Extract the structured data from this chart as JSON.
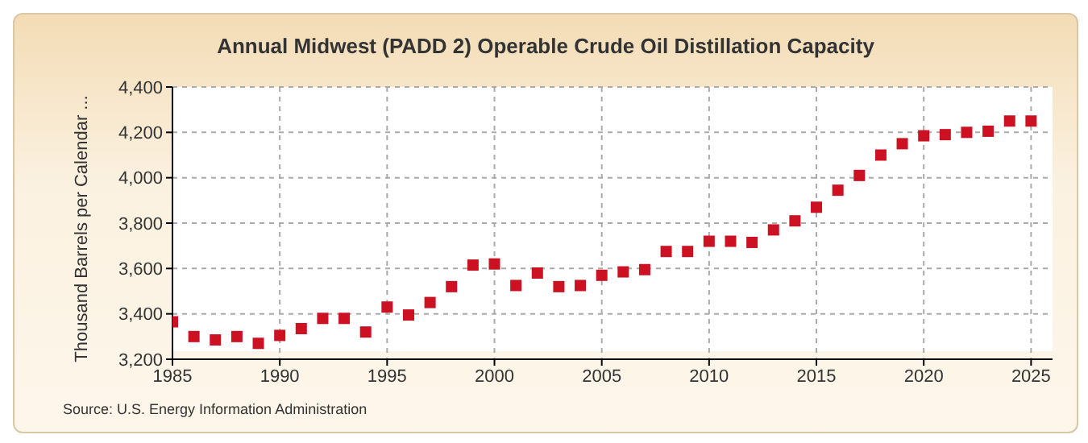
{
  "chart_data": {
    "type": "scatter",
    "title": "Annual Midwest (PADD 2) Operable Crude Oil Distillation Capacity",
    "ylabel": "Thousand Barrels per Calendar ...",
    "annotations": [
      "Source: U.S. Energy Information Administration"
    ],
    "x": [
      1985,
      1986,
      1987,
      1988,
      1989,
      1990,
      1991,
      1992,
      1993,
      1994,
      1995,
      1996,
      1997,
      1998,
      1999,
      2000,
      2001,
      2002,
      2003,
      2004,
      2005,
      2006,
      2007,
      2008,
      2009,
      2010,
      2011,
      2012,
      2013,
      2014,
      2015,
      2016,
      2017,
      2018,
      2019,
      2020,
      2021,
      2022,
      2023,
      2024,
      2025
    ],
    "series": [
      {
        "color": "#cc1122",
        "values": [
          3365,
          3300,
          3285,
          3300,
          3270,
          3305,
          3335,
          3380,
          3380,
          3320,
          3430,
          3395,
          3450,
          3520,
          3615,
          3620,
          3525,
          3580,
          3520,
          3525,
          3570,
          3585,
          3595,
          3675,
          3675,
          3720,
          3720,
          3715,
          3770,
          3810,
          3870,
          3945,
          4010,
          4100,
          4150,
          4185,
          4190,
          4200,
          4205,
          4250,
          4250
        ]
      }
    ],
    "xlim": [
      1985,
      2026
    ],
    "xticks": [
      1985,
      1990,
      1995,
      2000,
      2005,
      2010,
      2015,
      2020,
      2025
    ],
    "ylim": [
      3200,
      4400
    ],
    "yticks": [
      {
        "value": 3200,
        "label": "3,200"
      },
      {
        "value": 3400,
        "label": "3,400"
      },
      {
        "value": 3600,
        "label": "3,600"
      },
      {
        "value": 3800,
        "label": "3,800"
      },
      {
        "value": 4000,
        "label": "4,000"
      },
      {
        "value": 4200,
        "label": "4,200"
      },
      {
        "value": 4400,
        "label": "4,400"
      }
    ],
    "grid": true,
    "marker": "square",
    "legend": false
  }
}
